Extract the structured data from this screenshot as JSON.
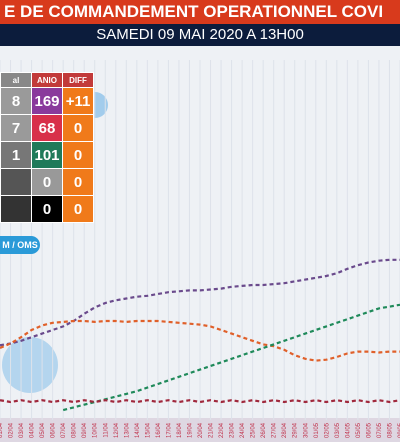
{
  "header": {
    "title": "E DE COMMANDEMENT OPERATIONNEL COVI",
    "subtitle": "SAMEDI 09 MAI 2020 A 13H00"
  },
  "table": {
    "columns": [
      "al",
      "ANIO",
      "DIFF"
    ],
    "rows": [
      [
        "8",
        "169",
        "+11"
      ],
      [
        "7",
        "68",
        "0"
      ],
      [
        "1",
        "101",
        "0"
      ],
      [
        "",
        "0",
        "0"
      ],
      [
        "",
        "0",
        "0"
      ]
    ]
  },
  "button": "M / OMS",
  "chart_data": {
    "type": "line",
    "categories": [
      "01/04",
      "02/04",
      "03/04",
      "04/04",
      "05/04",
      "06/04",
      "07/04",
      "08/04",
      "09/04",
      "10/04",
      "11/04",
      "12/04",
      "13/04",
      "14/04",
      "15/04",
      "16/04",
      "17/04",
      "18/04",
      "19/04",
      "20/04",
      "21/04",
      "22/04",
      "23/04",
      "24/04",
      "25/04",
      "26/04",
      "27/04",
      "28/04",
      "29/04",
      "30/04",
      "01/05",
      "02/05",
      "03/05",
      "04/05",
      "05/05",
      "06/05",
      "07/05",
      "08/05",
      "09/05"
    ],
    "ylim": [
      0,
      200
    ],
    "series": [
      {
        "color": "#6a4a8c",
        "values": [
          83,
          85,
          88,
          92,
          96,
          100,
          104,
          110,
          118,
          125,
          130,
          133,
          135,
          137,
          138,
          140,
          142,
          143,
          144,
          144,
          145,
          146,
          148,
          149,
          150,
          150,
          151,
          152,
          154,
          156,
          158,
          160,
          163,
          168,
          172,
          175,
          177,
          178,
          178
        ]
      },
      {
        "color": "#e0602a",
        "values": [
          80,
          85,
          92,
          100,
          105,
          108,
          109,
          110,
          110,
          109,
          110,
          110,
          109,
          110,
          110,
          110,
          109,
          108,
          107,
          106,
          104,
          100,
          96,
          92,
          88,
          84,
          82,
          78,
          72,
          68,
          66,
          67,
          70,
          74,
          76,
          76,
          75,
          76,
          76
        ]
      },
      {
        "color": "#1f8a5a",
        "values": [
          null,
          null,
          null,
          null,
          null,
          null,
          11,
          14,
          17,
          20,
          23,
          26,
          29,
          32,
          36,
          40,
          44,
          48,
          52,
          56,
          60,
          64,
          68,
          72,
          76,
          80,
          84,
          88,
          92,
          96,
          100,
          104,
          108,
          112,
          116,
          120,
          124,
          126,
          128
        ]
      },
      {
        "color": "#a0283c",
        "values": [
          22,
          20,
          22,
          20,
          22,
          20,
          22,
          20,
          22,
          20,
          22,
          20,
          22,
          20,
          22,
          20,
          22,
          20,
          22,
          20,
          22,
          20,
          22,
          20,
          22,
          20,
          22,
          20,
          22,
          20,
          22,
          20,
          22,
          20,
          22,
          20,
          22,
          20,
          22
        ]
      }
    ]
  }
}
